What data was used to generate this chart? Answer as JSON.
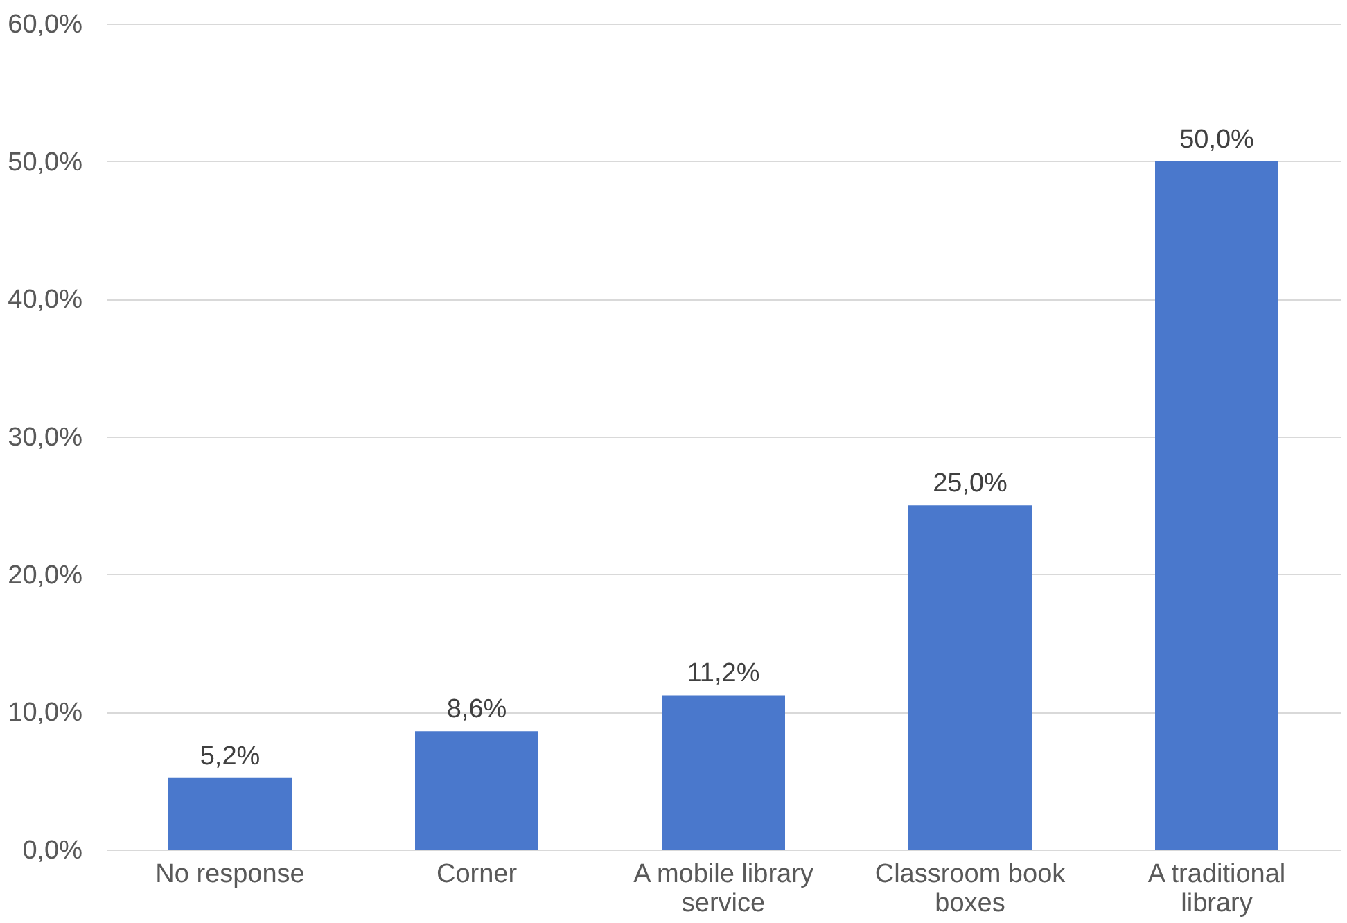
{
  "chart_data": {
    "type": "bar",
    "categories": [
      "No response",
      "Corner",
      "A mobile library service",
      "Classroom book boxes",
      "A traditional library"
    ],
    "values": [
      5.2,
      8.6,
      11.2,
      25.0,
      50.0
    ],
    "value_labels": [
      "5,2%",
      "8,6%",
      "11,2%",
      "25,0%",
      "50,0%"
    ],
    "color": "#4a78cc",
    "ylim": [
      0,
      60
    ],
    "yticks": [
      {
        "value": 0,
        "label": "0,0%"
      },
      {
        "value": 10,
        "label": "10,0%"
      },
      {
        "value": 20,
        "label": "20,0%"
      },
      {
        "value": 30,
        "label": "30,0%"
      },
      {
        "value": 40,
        "label": "40,0%"
      },
      {
        "value": 50,
        "label": "50,0%"
      },
      {
        "value": 60,
        "label": "60,0%"
      }
    ],
    "grid": "y"
  }
}
